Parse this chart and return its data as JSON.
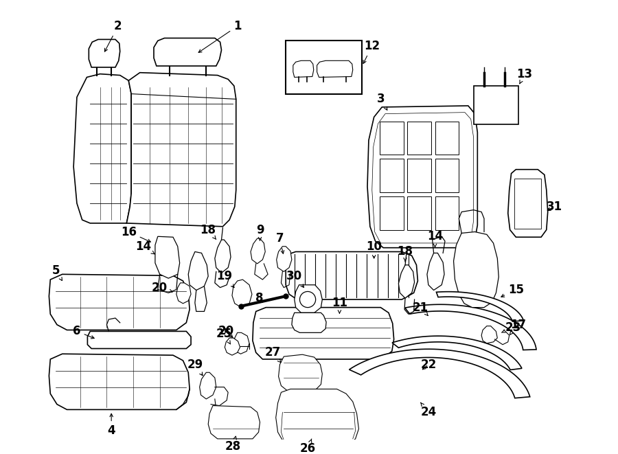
{
  "bg_color": "#ffffff",
  "lc": "#000000",
  "figsize": [
    9.0,
    6.61
  ],
  "dpi": 100
}
